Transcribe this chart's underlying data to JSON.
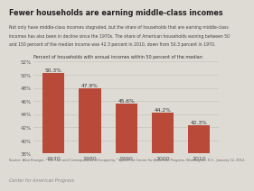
{
  "title": "Fewer households are earning middle-class incomes",
  "subtitle1": "Not only have middle-class incomes stagnated, but the share of households that are earning middle-class",
  "subtitle2": "incomes has also been in decline since the 1970s. The share of American households earning between 50",
  "subtitle3": "and 150 percent of the median income was 42.3 percent in 2010, down from 50.3 percent in 1970.",
  "axis_label": "Percent of households with annual incomes within 50 percent of the median",
  "categories": [
    "1970",
    "1980",
    "1990",
    "2000",
    "2010"
  ],
  "values": [
    50.3,
    47.9,
    45.6,
    44.2,
    42.3
  ],
  "bar_color": "#b94a3a",
  "ylim": [
    38,
    52
  ],
  "yticks": [
    38,
    40,
    42,
    44,
    46,
    48,
    50,
    52
  ],
  "background_color": "#dedad4",
  "plot_bg_color": "#dedad4",
  "grid_color": "#c8c4be",
  "source_text": "Source: Alan Krueger, \"The Rise and Consequences of Inequality,\" Speech at Center for American Progress, Washington, D.C., January 12, 2012.",
  "footer_text": "Center for American Progress"
}
